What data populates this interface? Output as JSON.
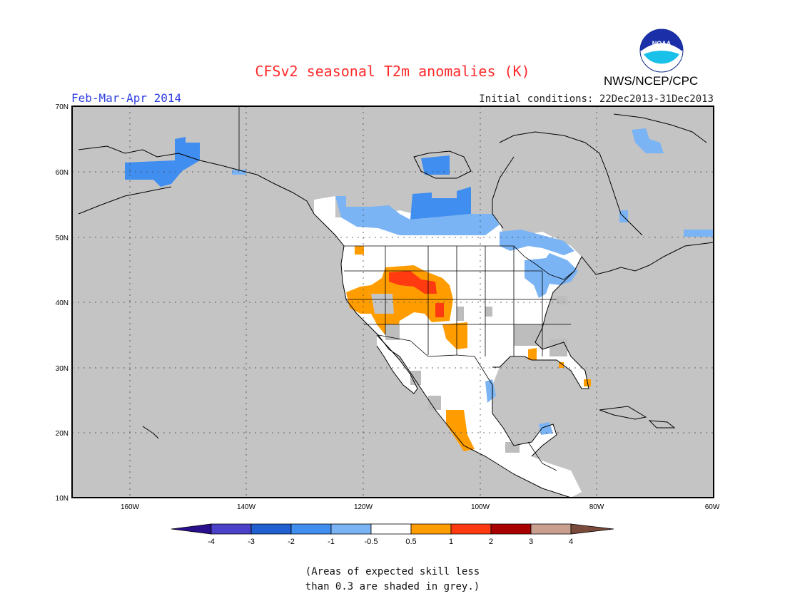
{
  "header": {
    "title": "CFSv2 seasonal T2m anomalies (K)",
    "period": "Feb-Mar-Apr 2014",
    "initial_conditions": "Initial conditions: 22Dec2013-31Dec2013",
    "agency": "NWS/NCEP/CPC",
    "logo_text": "NOAA"
  },
  "map": {
    "lat_labels": [
      "70N",
      "60N",
      "50N",
      "40N",
      "30N",
      "20N",
      "10N"
    ],
    "lon_labels": [
      "160W",
      "140W",
      "120W",
      "100W",
      "80W",
      "60W"
    ],
    "extent": {
      "lon": [
        -171,
        -60
      ],
      "lat": [
        10,
        70
      ]
    },
    "colors": {
      "ocean_no_skill": "#c4c4c4",
      "land": "#ffffff",
      "low_skill": "#bdbdbd"
    }
  },
  "colorbar": {
    "ticks": [
      "-4",
      "-3",
      "-2",
      "-1",
      "-0.5",
      "0.5",
      "1",
      "2",
      "3",
      "4"
    ],
    "colors": [
      "#2a0f8c",
      "#4b41c8",
      "#1f5fd0",
      "#3f8ef0",
      "#7ab4f4",
      "#ffffff",
      "#ff9d00",
      "#ff3a10",
      "#a80000",
      "#c9a090",
      "#7a4a3a"
    ]
  },
  "footnote": {
    "line1": "(Areas of expected skill less",
    "line2": "than 0.3 are shaded in grey.)"
  }
}
